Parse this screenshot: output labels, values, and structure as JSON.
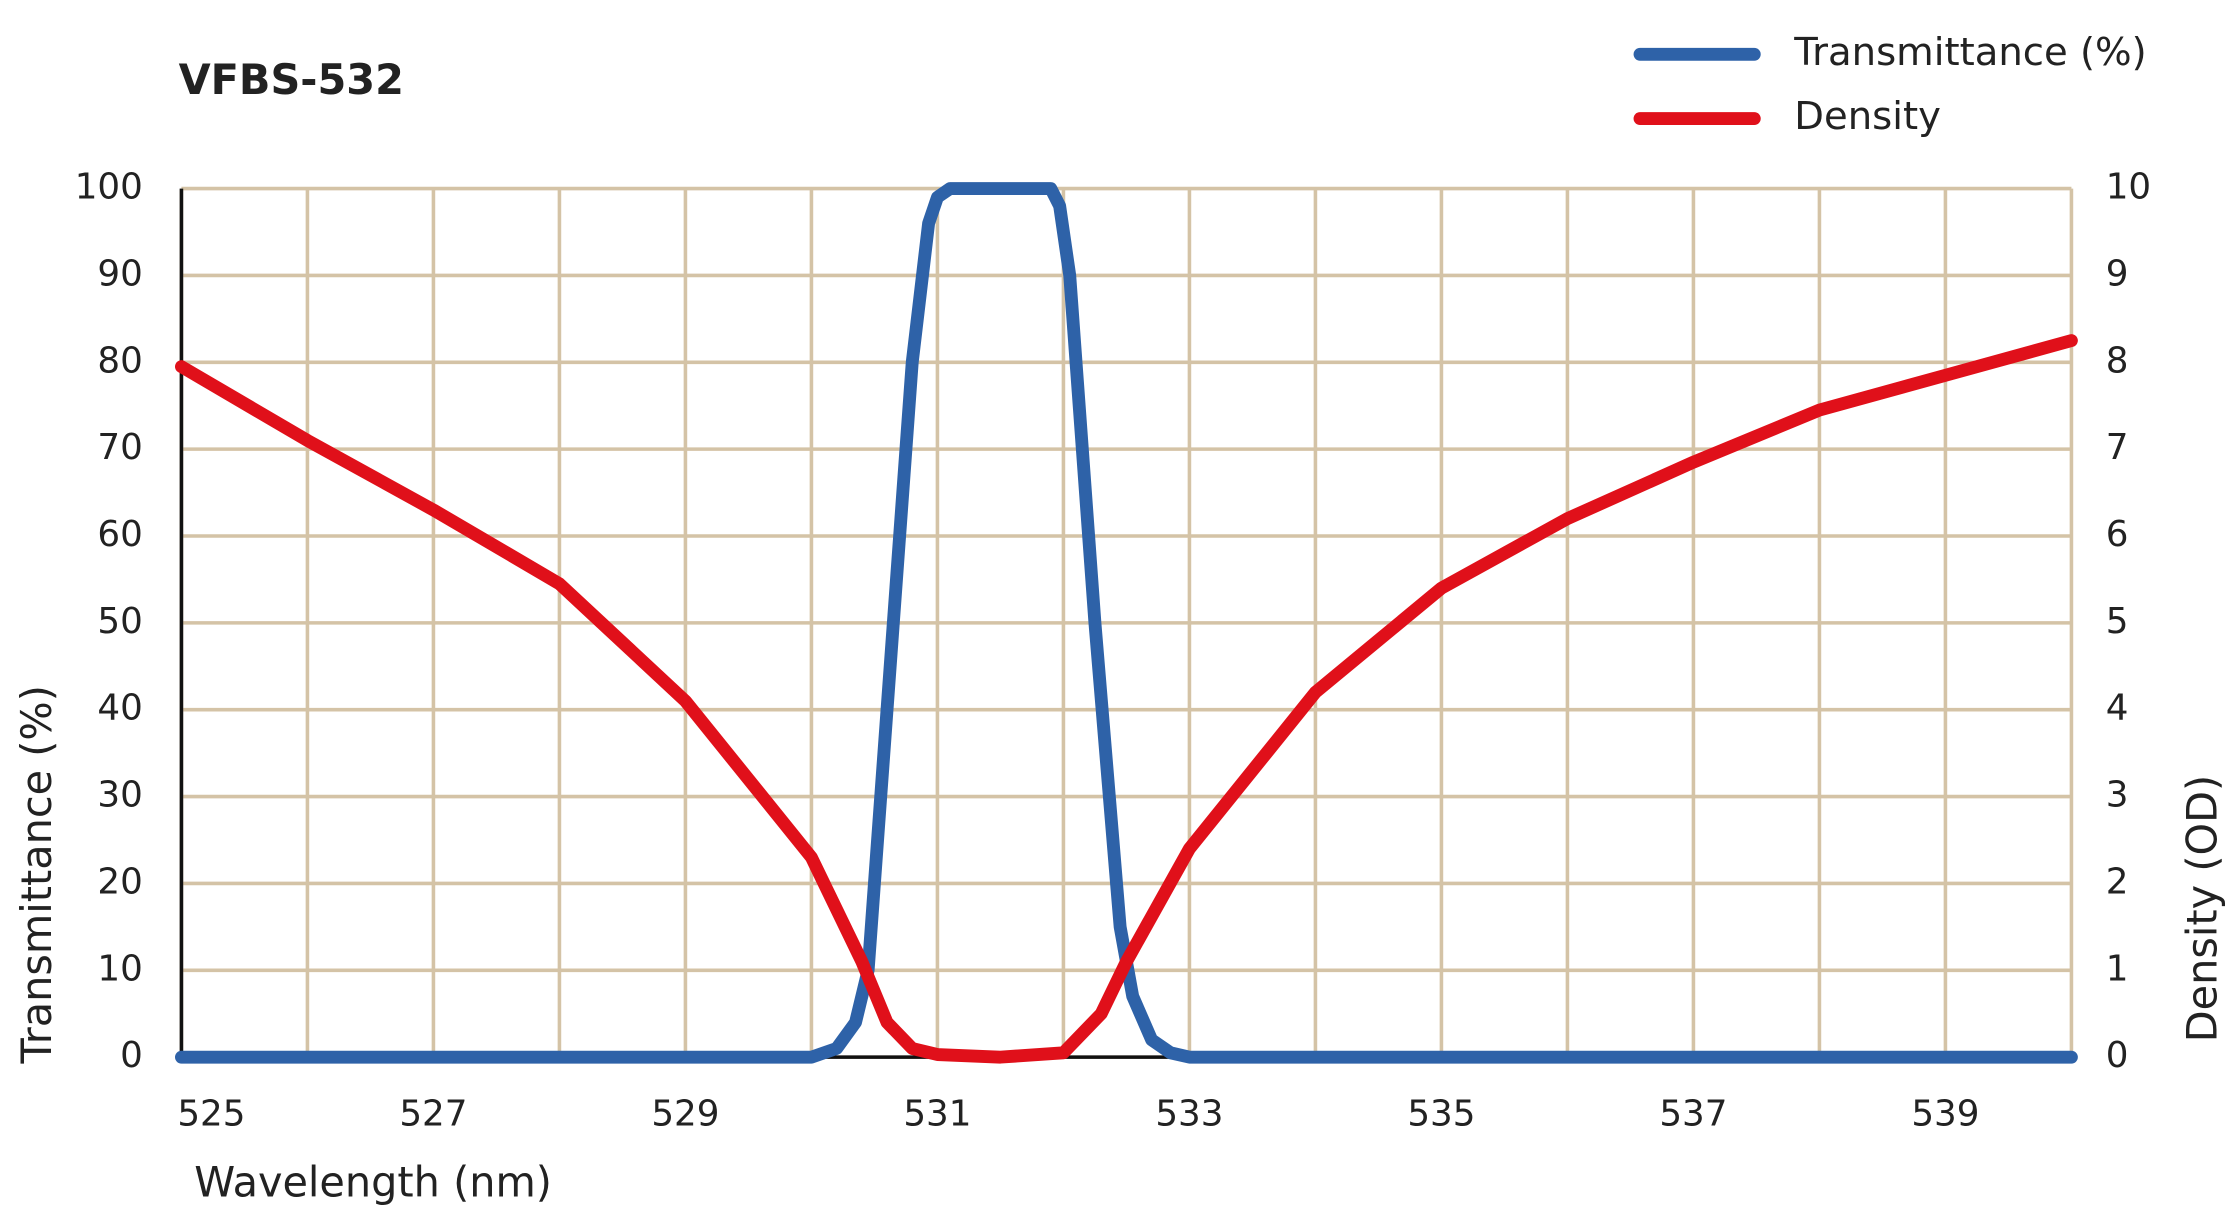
{
  "chart_data": {
    "type": "line",
    "title": "VFBS-532",
    "x_label": "Wavelength (nm)",
    "y_label": "Transmittance (%)",
    "y2_label": "Density (OD)",
    "xlim": [
      525,
      540
    ],
    "xticks": [
      525,
      527,
      529,
      531,
      533,
      535,
      537,
      539
    ],
    "xminor": [
      526,
      528,
      530,
      532,
      534,
      536,
      538,
      540
    ],
    "ylim": [
      0,
      100
    ],
    "yticks": [
      0,
      10,
      20,
      30,
      40,
      50,
      60,
      70,
      80,
      90,
      100
    ],
    "y2lim": [
      0,
      10
    ],
    "y2ticks": [
      0,
      1,
      2,
      3,
      4,
      5,
      6,
      7,
      8,
      9,
      10
    ],
    "grid": true,
    "legend": "top-right",
    "series": [
      {
        "name": "Transmittance (%)",
        "color": "#2e62a8",
        "x": [
          525,
          530,
          530.2,
          530.35,
          530.45,
          530.6,
          530.8,
          530.93,
          531.0,
          531.1,
          531.9,
          531.97,
          532.05,
          532.25,
          532.45,
          532.55,
          532.7,
          532.85,
          533,
          540
        ],
        "values": [
          0,
          0,
          1,
          4,
          10,
          40,
          80,
          96,
          99,
          100,
          100,
          98,
          90,
          50,
          15,
          7,
          2,
          0.5,
          0,
          0
        ]
      },
      {
        "name": "Density",
        "color": "#e0101a",
        "axis": "y2",
        "x": [
          525,
          526,
          527,
          528,
          529,
          530,
          530.4,
          530.6,
          530.8,
          531,
          531.5,
          532,
          532.3,
          532.5,
          533,
          534,
          535,
          536,
          537,
          538,
          539,
          540
        ],
        "values": [
          7.95,
          7.1,
          6.3,
          5.45,
          4.1,
          2.3,
          1.1,
          0.4,
          0.1,
          0.03,
          0,
          0.05,
          0.5,
          1.1,
          2.4,
          4.2,
          5.4,
          6.2,
          6.85,
          7.45,
          7.85,
          8.25
        ]
      }
    ]
  }
}
